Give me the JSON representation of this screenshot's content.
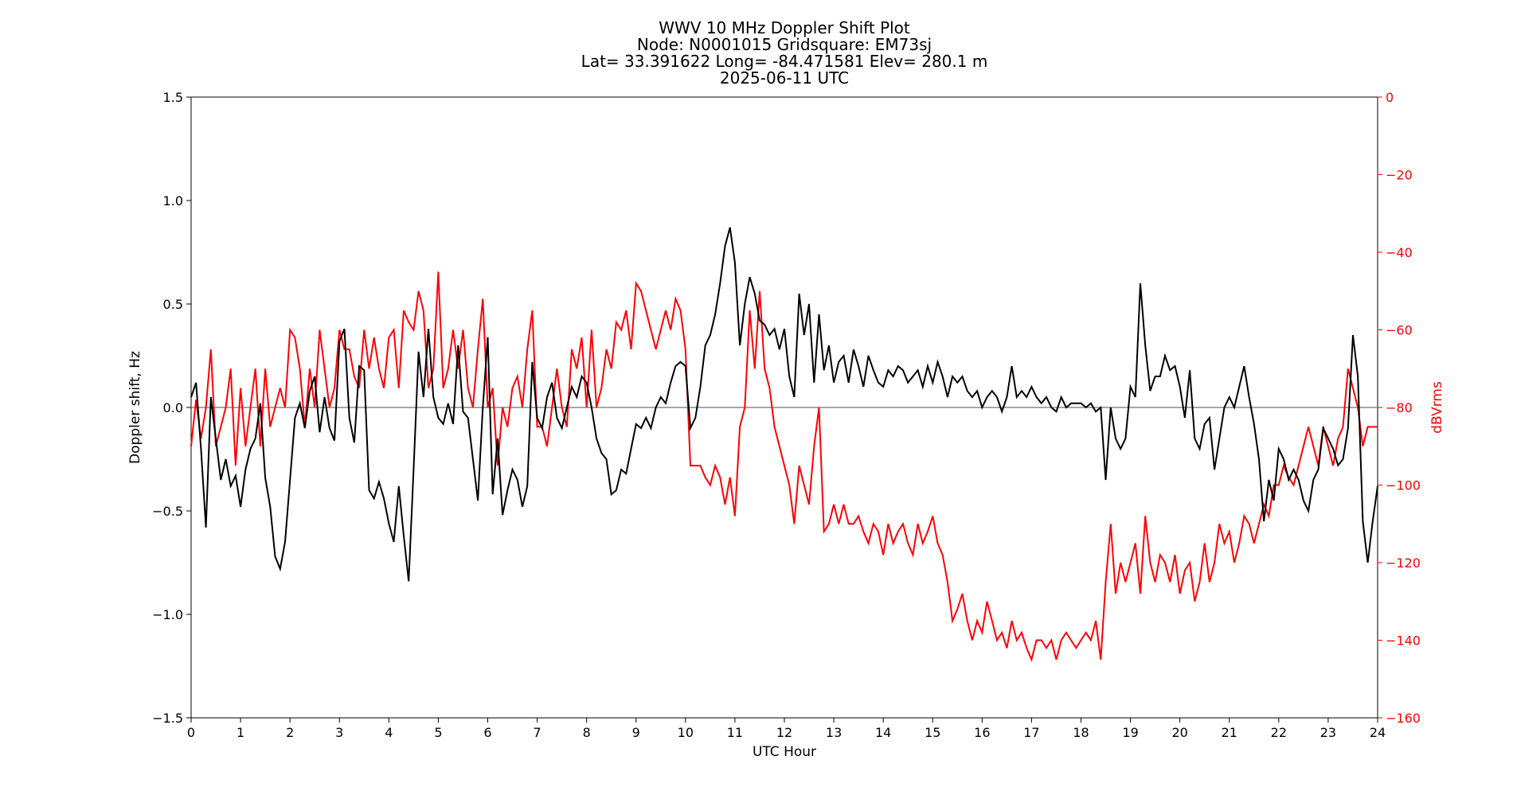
{
  "chart_data": {
    "type": "line",
    "title_lines": [
      "WWV 10 MHz Doppler Shift Plot",
      "Node:  N0001015     Gridsquare:  EM73sj",
      "Lat= 33.391622    Long= -84.471581    Elev= 280.1 m",
      "2025-06-11  UTC"
    ],
    "xlabel": "UTC Hour",
    "ylabel_left": "Doppler shift, Hz",
    "ylabel_right": "dBVrms",
    "xlim": [
      0,
      24
    ],
    "ylim_left": [
      -1.5,
      1.5
    ],
    "ylim_right": [
      -160,
      0
    ],
    "x_ticks": [
      "0",
      "1",
      "2",
      "3",
      "4",
      "5",
      "6",
      "7",
      "8",
      "9",
      "10",
      "11",
      "12",
      "13",
      "14",
      "15",
      "16",
      "17",
      "18",
      "19",
      "20",
      "21",
      "22",
      "23",
      "24"
    ],
    "y_left_ticks": [
      "1.5",
      "1.0",
      "0.5",
      "0.0",
      "−0.5",
      "−1.0",
      "−1.5"
    ],
    "y_right_ticks": [
      "0",
      "−20",
      "−40",
      "−60",
      "−80",
      "−100",
      "−120",
      "−140",
      "−160"
    ],
    "zero_line": true,
    "colors": {
      "doppler": "#000000",
      "power": "#ff0000",
      "right_axis": "#ff0000",
      "zero_line": "#888888"
    },
    "series": [
      {
        "axis": "left",
        "x": [
          0,
          0.1,
          0.2,
          0.3,
          0.4,
          0.5,
          0.6,
          0.7,
          0.8,
          0.9,
          1.0,
          1.1,
          1.2,
          1.3,
          1.4,
          1.5,
          1.6,
          1.7,
          1.8,
          1.9,
          2.0,
          2.1,
          2.2,
          2.3,
          2.4,
          2.5,
          2.6,
          2.7,
          2.8,
          2.9,
          3.0,
          3.1,
          3.2,
          3.3,
          3.4,
          3.5,
          3.6,
          3.7,
          3.8,
          3.9,
          4.0,
          4.1,
          4.2,
          4.3,
          4.4,
          4.5,
          4.6,
          4.7,
          4.8,
          4.9,
          5.0,
          5.1,
          5.2,
          5.3,
          5.4,
          5.5,
          5.6,
          5.7,
          5.8,
          5.9,
          6.0,
          6.1,
          6.2,
          6.3,
          6.4,
          6.5,
          6.6,
          6.7,
          6.8,
          6.9,
          7.0,
          7.1,
          7.2,
          7.3,
          7.4,
          7.5,
          7.6,
          7.7,
          7.8,
          7.9,
          8.0,
          8.1,
          8.2,
          8.3,
          8.4,
          8.5,
          8.6,
          8.7,
          8.8,
          8.9,
          9.0,
          9.1,
          9.2,
          9.3,
          9.4,
          9.5,
          9.6,
          9.7,
          9.8,
          9.9,
          10.0,
          10.1,
          10.2,
          10.3,
          10.4,
          10.5,
          10.6,
          10.7,
          10.8,
          10.9,
          11.0,
          11.1,
          11.2,
          11.3,
          11.4,
          11.5,
          11.6,
          11.7,
          11.8,
          11.9,
          12.0,
          12.1,
          12.2,
          12.3,
          12.4,
          12.5,
          12.6,
          12.7,
          12.8,
          12.9,
          13.0,
          13.1,
          13.2,
          13.3,
          13.4,
          13.5,
          13.6,
          13.7,
          13.8,
          13.9,
          14.0,
          14.1,
          14.2,
          14.3,
          14.4,
          14.5,
          14.6,
          14.7,
          14.8,
          14.9,
          15.0,
          15.1,
          15.2,
          15.3,
          15.4,
          15.5,
          15.6,
          15.7,
          15.8,
          15.9,
          16.0,
          16.1,
          16.2,
          16.3,
          16.4,
          16.5,
          16.6,
          16.7,
          16.8,
          16.9,
          17.0,
          17.1,
          17.2,
          17.3,
          17.4,
          17.5,
          17.6,
          17.7,
          17.8,
          17.9,
          18.0,
          18.1,
          18.2,
          18.3,
          18.4,
          18.5,
          18.6,
          18.7,
          18.8,
          18.9,
          19.0,
          19.1,
          19.2,
          19.3,
          19.4,
          19.5,
          19.6,
          19.7,
          19.8,
          19.9,
          20.0,
          20.1,
          20.2,
          20.3,
          20.4,
          20.5,
          20.6,
          20.7,
          20.8,
          20.9,
          21.0,
          21.1,
          21.2,
          21.3,
          21.4,
          21.5,
          21.6,
          21.7,
          21.8,
          21.9,
          22.0,
          22.1,
          22.2,
          22.3,
          22.4,
          22.5,
          22.6,
          22.7,
          22.8,
          22.9,
          23.0,
          23.1,
          23.2,
          23.3,
          23.4,
          23.5,
          23.6,
          23.7,
          23.8,
          23.9,
          24.0
        ],
        "values": [
          0.05,
          0.12,
          -0.2,
          -0.58,
          0.05,
          -0.15,
          -0.35,
          -0.25,
          -0.38,
          -0.33,
          -0.48,
          -0.3,
          -0.2,
          -0.15,
          0.02,
          -0.34,
          -0.48,
          -0.72,
          -0.78,
          -0.65,
          -0.35,
          -0.05,
          0.02,
          -0.1,
          0.08,
          0.15,
          -0.12,
          0.05,
          -0.1,
          -0.16,
          0.32,
          0.38,
          -0.05,
          -0.17,
          0.2,
          0.18,
          -0.4,
          -0.44,
          -0.36,
          -0.44,
          -0.56,
          -0.65,
          -0.38,
          -0.62,
          -0.84,
          -0.3,
          0.27,
          0.05,
          0.38,
          0.05,
          -0.05,
          -0.08,
          0.02,
          -0.08,
          0.3,
          -0.02,
          -0.05,
          -0.25,
          -0.45,
          0.0,
          0.34,
          -0.42,
          -0.15,
          -0.52,
          -0.4,
          -0.3,
          -0.35,
          -0.48,
          -0.38,
          0.22,
          -0.05,
          -0.1,
          0.05,
          0.12,
          -0.05,
          -0.1,
          0.0,
          0.1,
          0.05,
          0.15,
          0.12,
          0.0,
          -0.15,
          -0.22,
          -0.25,
          -0.42,
          -0.4,
          -0.3,
          -0.32,
          -0.2,
          -0.08,
          -0.1,
          -0.05,
          -0.1,
          0.0,
          0.05,
          0.02,
          0.12,
          0.2,
          0.22,
          0.2,
          -0.1,
          -0.05,
          0.1,
          0.3,
          0.35,
          0.45,
          0.6,
          0.78,
          0.87,
          0.7,
          0.3,
          0.5,
          0.63,
          0.55,
          0.42,
          0.4,
          0.35,
          0.38,
          0.28,
          0.38,
          0.15,
          0.05,
          0.55,
          0.35,
          0.5,
          0.12,
          0.45,
          0.18,
          0.3,
          0.12,
          0.22,
          0.25,
          0.12,
          0.28,
          0.2,
          0.1,
          0.25,
          0.18,
          0.12,
          0.1,
          0.18,
          0.15,
          0.2,
          0.18,
          0.12,
          0.15,
          0.18,
          0.1,
          0.2,
          0.12,
          0.22,
          0.15,
          0.05,
          0.15,
          0.12,
          0.15,
          0.08,
          0.05,
          0.08,
          0.0,
          0.05,
          0.08,
          0.05,
          -0.02,
          0.05,
          0.2,
          0.05,
          0.08,
          0.05,
          0.1,
          0.05,
          0.02,
          0.05,
          0.0,
          -0.02,
          0.05,
          0.0,
          0.02,
          0.02,
          0.02,
          0.0,
          0.02,
          -0.02,
          0.0,
          -0.35,
          0.0,
          -0.15,
          -0.2,
          -0.15,
          0.1,
          0.05,
          0.6,
          0.3,
          0.08,
          0.15,
          0.15,
          0.25,
          0.18,
          0.2,
          0.1,
          -0.05,
          0.18,
          -0.15,
          -0.2,
          -0.08,
          -0.05,
          -0.3,
          -0.15,
          0.0,
          0.05,
          0.0,
          0.1,
          0.2,
          0.05,
          -0.08,
          -0.25,
          -0.55,
          -0.35,
          -0.45,
          -0.2,
          -0.25,
          -0.35,
          -0.3,
          -0.35,
          -0.45,
          -0.5,
          -0.35,
          -0.3,
          -0.1,
          -0.15,
          -0.2,
          -0.28,
          -0.25,
          -0.1,
          0.35,
          0.15,
          -0.55,
          -0.75,
          -0.55,
          -0.38
        ]
      },
      {
        "axis": "right",
        "x": [
          0,
          0.1,
          0.2,
          0.3,
          0.4,
          0.5,
          0.6,
          0.7,
          0.8,
          0.9,
          1.0,
          1.1,
          1.2,
          1.3,
          1.4,
          1.5,
          1.6,
          1.7,
          1.8,
          1.9,
          2.0,
          2.1,
          2.2,
          2.3,
          2.4,
          2.5,
          2.6,
          2.7,
          2.8,
          2.9,
          3.0,
          3.1,
          3.2,
          3.3,
          3.4,
          3.5,
          3.6,
          3.7,
          3.8,
          3.9,
          4.0,
          4.1,
          4.2,
          4.3,
          4.4,
          4.5,
          4.6,
          4.7,
          4.8,
          4.9,
          5.0,
          5.1,
          5.2,
          5.3,
          5.4,
          5.5,
          5.6,
          5.7,
          5.8,
          5.9,
          6.0,
          6.1,
          6.2,
          6.3,
          6.4,
          6.5,
          6.6,
          6.7,
          6.8,
          6.9,
          7.0,
          7.1,
          7.2,
          7.3,
          7.4,
          7.5,
          7.6,
          7.7,
          7.8,
          7.9,
          8.0,
          8.1,
          8.2,
          8.3,
          8.4,
          8.5,
          8.6,
          8.7,
          8.8,
          8.9,
          9.0,
          9.1,
          9.2,
          9.3,
          9.4,
          9.5,
          9.6,
          9.7,
          9.8,
          9.9,
          10.0,
          10.1,
          10.2,
          10.3,
          10.4,
          10.5,
          10.6,
          10.7,
          10.8,
          10.9,
          11.0,
          11.1,
          11.2,
          11.3,
          11.4,
          11.5,
          11.6,
          11.7,
          11.8,
          11.9,
          12.0,
          12.1,
          12.2,
          12.3,
          12.4,
          12.5,
          12.6,
          12.7,
          12.8,
          12.9,
          13.0,
          13.1,
          13.2,
          13.3,
          13.4,
          13.5,
          13.6,
          13.7,
          13.8,
          13.9,
          14.0,
          14.1,
          14.2,
          14.3,
          14.4,
          14.5,
          14.6,
          14.7,
          14.8,
          14.9,
          15.0,
          15.1,
          15.2,
          15.3,
          15.4,
          15.5,
          15.6,
          15.7,
          15.8,
          15.9,
          16.0,
          16.1,
          16.2,
          16.3,
          16.4,
          16.5,
          16.6,
          16.7,
          16.8,
          16.9,
          17.0,
          17.1,
          17.2,
          17.3,
          17.4,
          17.5,
          17.6,
          17.7,
          17.8,
          17.9,
          18.0,
          18.1,
          18.2,
          18.3,
          18.4,
          18.5,
          18.6,
          18.7,
          18.8,
          18.9,
          19.0,
          19.1,
          19.2,
          19.3,
          19.4,
          19.5,
          19.6,
          19.7,
          19.8,
          19.9,
          20.0,
          20.1,
          20.2,
          20.3,
          20.4,
          20.5,
          20.6,
          20.7,
          20.8,
          20.9,
          21.0,
          21.1,
          21.2,
          21.3,
          21.4,
          21.5,
          21.6,
          21.7,
          21.8,
          21.9,
          22.0,
          22.1,
          22.2,
          22.3,
          22.4,
          22.5,
          22.6,
          22.7,
          22.8,
          22.9,
          23.0,
          23.1,
          23.2,
          23.3,
          23.4,
          23.5,
          23.6,
          23.7,
          23.8,
          23.9,
          24.0
        ],
        "values": [
          -90,
          -78,
          -88,
          -80,
          -65,
          -90,
          -85,
          -80,
          -70,
          -95,
          -75,
          -90,
          -80,
          -70,
          -90,
          -70,
          -85,
          -80,
          -75,
          -80,
          -60,
          -62,
          -70,
          -85,
          -70,
          -80,
          -60,
          -70,
          -80,
          -75,
          -60,
          -65,
          -65,
          -72,
          -75,
          -60,
          -70,
          -62,
          -70,
          -75,
          -62,
          -60,
          -75,
          -55,
          -58,
          -60,
          -50,
          -55,
          -75,
          -70,
          -45,
          -75,
          -70,
          -60,
          -70,
          -60,
          -75,
          -80,
          -65,
          -52,
          -80,
          -75,
          -95,
          -80,
          -85,
          -75,
          -72,
          -80,
          -65,
          -55,
          -85,
          -85,
          -90,
          -80,
          -70,
          -80,
          -85,
          -65,
          -70,
          -62,
          -80,
          -60,
          -80,
          -75,
          -65,
          -70,
          -58,
          -60,
          -55,
          -65,
          -48,
          -50,
          -55,
          -60,
          -65,
          -60,
          -55,
          -60,
          -52,
          -55,
          -65,
          -95,
          -95,
          -95,
          -98,
          -100,
          -95,
          -98,
          -105,
          -98,
          -108,
          -85,
          -80,
          -55,
          -70,
          -50,
          -70,
          -75,
          -85,
          -90,
          -95,
          -100,
          -110,
          -95,
          -100,
          -105,
          -90,
          -80,
          -112,
          -110,
          -105,
          -110,
          -105,
          -110,
          -110,
          -108,
          -112,
          -115,
          -110,
          -112,
          -118,
          -110,
          -115,
          -112,
          -110,
          -115,
          -118,
          -110,
          -115,
          -112,
          -108,
          -115,
          -118,
          -125,
          -135,
          -132,
          -128,
          -135,
          -140,
          -135,
          -138,
          -130,
          -135,
          -140,
          -138,
          -142,
          -135,
          -140,
          -138,
          -142,
          -145,
          -140,
          -140,
          -142,
          -140,
          -145,
          -140,
          -138,
          -140,
          -142,
          -140,
          -138,
          -140,
          -135,
          -145,
          -125,
          -110,
          -128,
          -120,
          -125,
          -120,
          -115,
          -128,
          -108,
          -120,
          -125,
          -118,
          -120,
          -125,
          -118,
          -128,
          -122,
          -120,
          -130,
          -125,
          -115,
          -125,
          -120,
          -110,
          -115,
          -112,
          -120,
          -115,
          -108,
          -110,
          -115,
          -110,
          -105,
          -108,
          -100,
          -100,
          -95,
          -98,
          -100,
          -95,
          -90,
          -85,
          -90,
          -95,
          -85,
          -90,
          -95,
          -88,
          -85,
          -70,
          -75,
          -80,
          -90,
          -85,
          -85,
          -85
        ]
      }
    ]
  }
}
